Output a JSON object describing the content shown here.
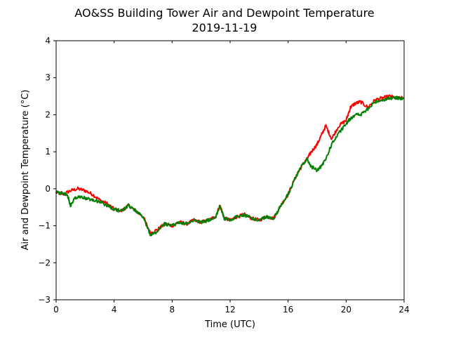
{
  "chart_data": {
    "type": "line",
    "title": "AO&SS Building Tower Air and Dewpoint Temperature",
    "subtitle": "2019-11-19",
    "xlabel": "Time (UTC)",
    "ylabel": "Air and Dewpoint Temperature (°C)",
    "xlim": [
      0,
      24
    ],
    "ylim": [
      -3,
      4
    ],
    "xticks": [
      0,
      4,
      8,
      12,
      16,
      20,
      24
    ],
    "yticks": [
      -3,
      -2,
      -1,
      0,
      1,
      2,
      3,
      4
    ],
    "grid": false,
    "series": [
      {
        "color": "#ff0000",
        "x": [
          0,
          0.5,
          1.0,
          1.5,
          2.0,
          2.5,
          3.0,
          3.5,
          4.0,
          4.5,
          5.0,
          5.5,
          6.0,
          6.5,
          7.0,
          7.5,
          8.0,
          8.5,
          9.0,
          9.5,
          10.0,
          10.5,
          11.0,
          11.3,
          11.6,
          12.0,
          12.5,
          13.0,
          13.5,
          14.0,
          14.5,
          15.0,
          15.5,
          16.0,
          16.5,
          17.0,
          17.3,
          17.6,
          18.0,
          18.3,
          18.6,
          19.0,
          19.5,
          20.0,
          20.3,
          20.6,
          21.0,
          21.5,
          22.0,
          22.5,
          23.0,
          23.5,
          24.0
        ],
        "y": [
          -0.1,
          -0.15,
          -0.05,
          0.0,
          -0.05,
          -0.15,
          -0.3,
          -0.4,
          -0.55,
          -0.6,
          -0.45,
          -0.6,
          -0.75,
          -1.2,
          -1.1,
          -0.95,
          -1.0,
          -0.9,
          -0.95,
          -0.85,
          -0.9,
          -0.85,
          -0.75,
          -0.45,
          -0.8,
          -0.85,
          -0.75,
          -0.7,
          -0.8,
          -0.85,
          -0.75,
          -0.8,
          -0.45,
          -0.15,
          0.3,
          0.65,
          0.8,
          1.0,
          1.2,
          1.45,
          1.7,
          1.35,
          1.7,
          1.85,
          2.2,
          2.3,
          2.35,
          2.2,
          2.4,
          2.45,
          2.5,
          2.45,
          2.45
        ]
      },
      {
        "color": "#008000",
        "x": [
          0,
          0.5,
          0.8,
          1.0,
          1.3,
          1.6,
          2.0,
          2.5,
          3.0,
          3.5,
          4.0,
          4.5,
          5.0,
          5.5,
          6.0,
          6.5,
          7.0,
          7.5,
          8.0,
          8.5,
          9.0,
          9.5,
          10.0,
          10.5,
          11.0,
          11.3,
          11.6,
          12.0,
          12.5,
          13.0,
          13.5,
          14.0,
          14.5,
          15.0,
          15.5,
          16.0,
          16.5,
          17.0,
          17.3,
          17.6,
          18.0,
          18.3,
          18.6,
          19.0,
          19.5,
          20.0,
          20.3,
          20.6,
          21.0,
          21.5,
          22.0,
          22.5,
          23.0,
          23.5,
          24.0
        ],
        "y": [
          -0.1,
          -0.12,
          -0.2,
          -0.45,
          -0.25,
          -0.2,
          -0.25,
          -0.3,
          -0.35,
          -0.45,
          -0.55,
          -0.6,
          -0.45,
          -0.6,
          -0.75,
          -1.25,
          -1.15,
          -0.95,
          -1.0,
          -0.9,
          -0.95,
          -0.85,
          -0.9,
          -0.85,
          -0.75,
          -0.45,
          -0.8,
          -0.85,
          -0.75,
          -0.7,
          -0.8,
          -0.85,
          -0.75,
          -0.8,
          -0.45,
          -0.15,
          0.3,
          0.65,
          0.8,
          0.6,
          0.5,
          0.6,
          0.8,
          1.2,
          1.5,
          1.75,
          1.9,
          2.0,
          2.0,
          2.15,
          2.35,
          2.4,
          2.45,
          2.45,
          2.45
        ]
      }
    ]
  }
}
